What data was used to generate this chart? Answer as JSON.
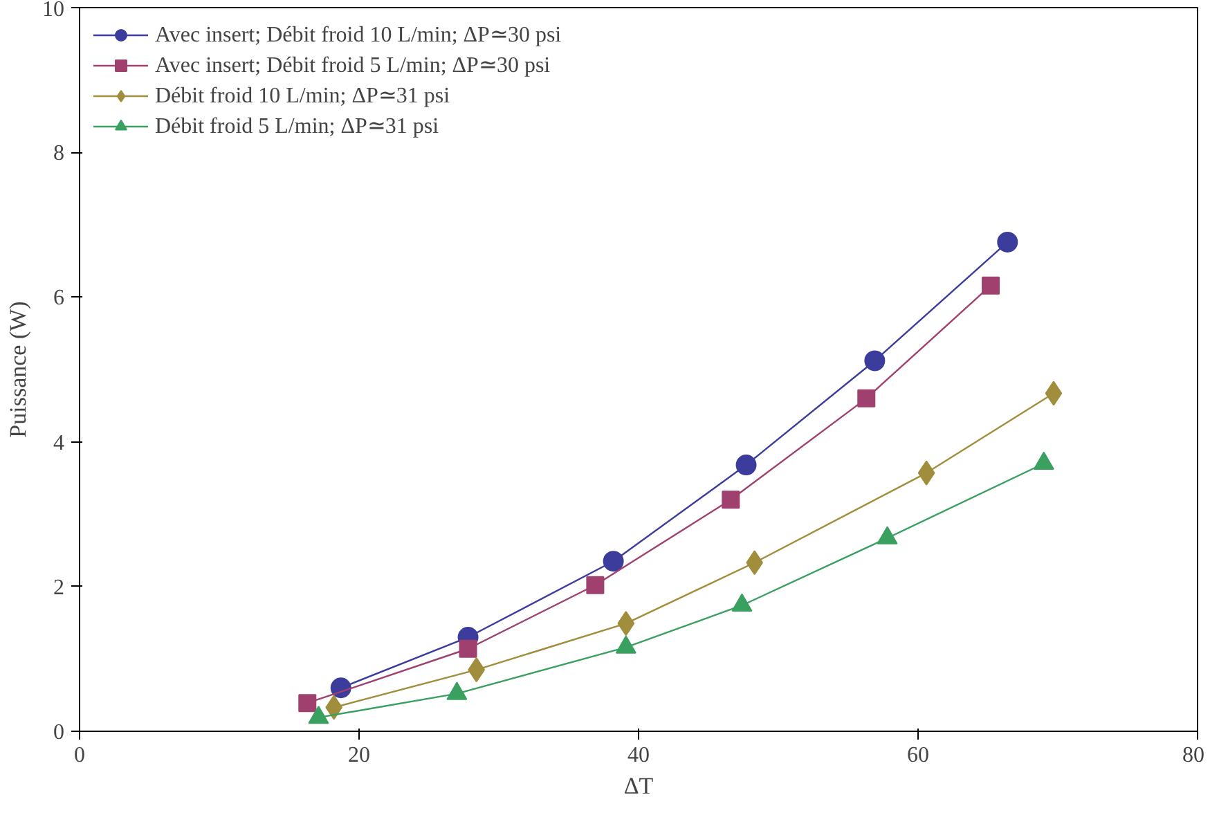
{
  "chart_data": {
    "type": "line",
    "xlabel": "ΔT",
    "ylabel": "Puissance (W)",
    "xlim": [
      0,
      80
    ],
    "xticks": [
      0,
      20,
      40,
      60,
      80
    ],
    "ylim": [
      0,
      10
    ],
    "yticks": [
      0,
      2,
      4,
      6,
      8,
      10
    ],
    "grid": false,
    "legend": "top left",
    "line_style": "solid",
    "series": [
      {
        "name": "Avec insert; Débit froid 10 L/min; ΔP≃30 psi",
        "color": "#3c3c9c",
        "marker": "circle",
        "x": [
          18.7,
          27.8,
          38.2,
          47.7,
          56.9,
          66.4
        ],
        "values": [
          0.6,
          1.3,
          2.35,
          3.68,
          5.12,
          6.76
        ]
      },
      {
        "name": "Avec insert; Débit froid 5 L/min; ΔP≃30 psi",
        "color": "#a0406f",
        "marker": "square",
        "x": [
          16.3,
          27.8,
          36.9,
          46.6,
          56.3,
          65.2
        ],
        "values": [
          0.39,
          1.14,
          2.02,
          3.2,
          4.6,
          6.16
        ]
      },
      {
        "name": "Débit froid 10 L/min; ΔP≃31 psi",
        "color": "#a08e3c",
        "marker": "diamond",
        "x": [
          18.2,
          28.4,
          39.1,
          48.3,
          60.6,
          69.7
        ],
        "values": [
          0.33,
          0.85,
          1.49,
          2.33,
          3.57,
          4.67
        ]
      },
      {
        "name": "Débit froid 5 L/min; ΔP≃31 psi",
        "color": "#3aa060",
        "marker": "triangle",
        "x": [
          17.1,
          27.0,
          39.1,
          47.4,
          57.8,
          69.0
        ],
        "values": [
          0.19,
          0.52,
          1.16,
          1.74,
          2.67,
          3.7
        ]
      }
    ]
  }
}
